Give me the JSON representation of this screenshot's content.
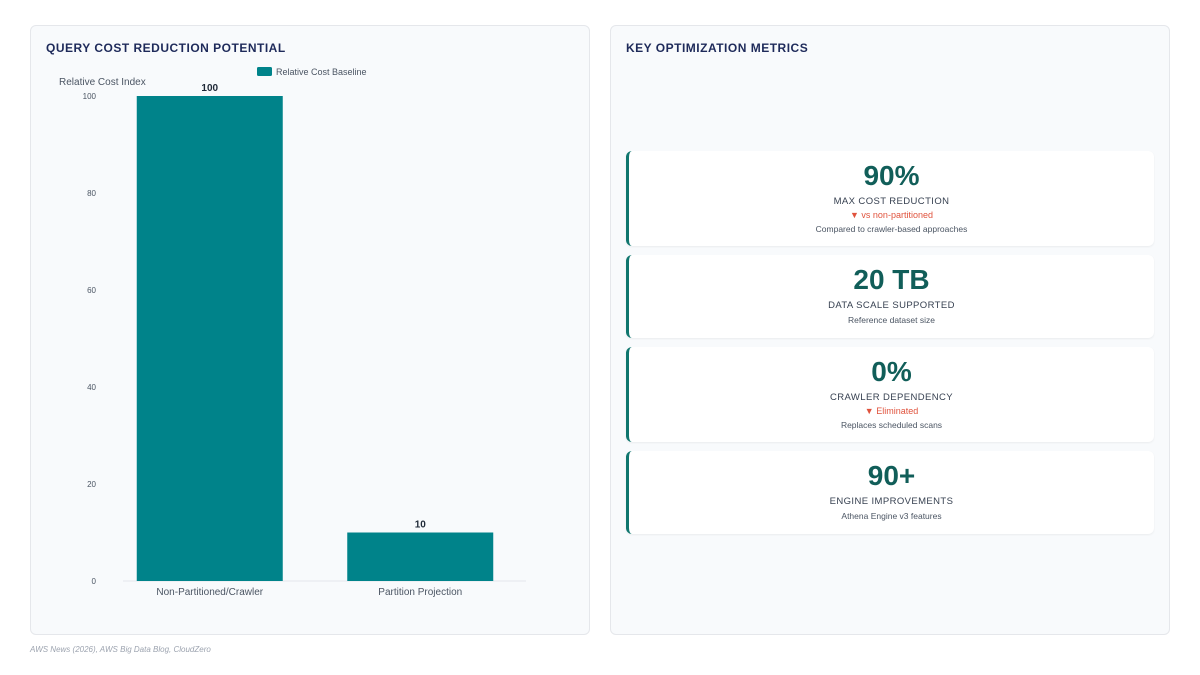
{
  "left_panel": {
    "title": "QUERY COST REDUCTION POTENTIAL"
  },
  "right_panel": {
    "title": "KEY OPTIMIZATION METRICS"
  },
  "chart_data": {
    "type": "bar",
    "title": "QUERY COST REDUCTION POTENTIAL",
    "categories": [
      "Non-Partitioned/Crawler",
      "Partition Projection"
    ],
    "series": [
      {
        "name": "Relative Cost Baseline",
        "values": [
          100,
          10
        ]
      }
    ],
    "ylabel": "Relative Cost Index",
    "xlabel": "",
    "ylim": [
      0,
      100
    ],
    "yticks": [
      0,
      20,
      40,
      60,
      80,
      100
    ],
    "grid": false,
    "legend": "top",
    "color": "#00838a"
  },
  "metrics": [
    {
      "value": "90%",
      "label": "MAX COST REDUCTION",
      "change": "▼ vs non-partitioned",
      "note": "Compared to crawler-based approaches"
    },
    {
      "value": "20 TB",
      "label": "DATA SCALE SUPPORTED",
      "change": "",
      "note": "Reference dataset size"
    },
    {
      "value": "0%",
      "label": "CRAWLER DEPENDENCY",
      "change": "▼ Eliminated",
      "note": "Replaces scheduled scans"
    },
    {
      "value": "90+",
      "label": "ENGINE IMPROVEMENTS",
      "change": "",
      "note": "Athena Engine v3 features"
    }
  ],
  "source": "AWS News (2026), AWS Big Data Blog, CloudZero"
}
